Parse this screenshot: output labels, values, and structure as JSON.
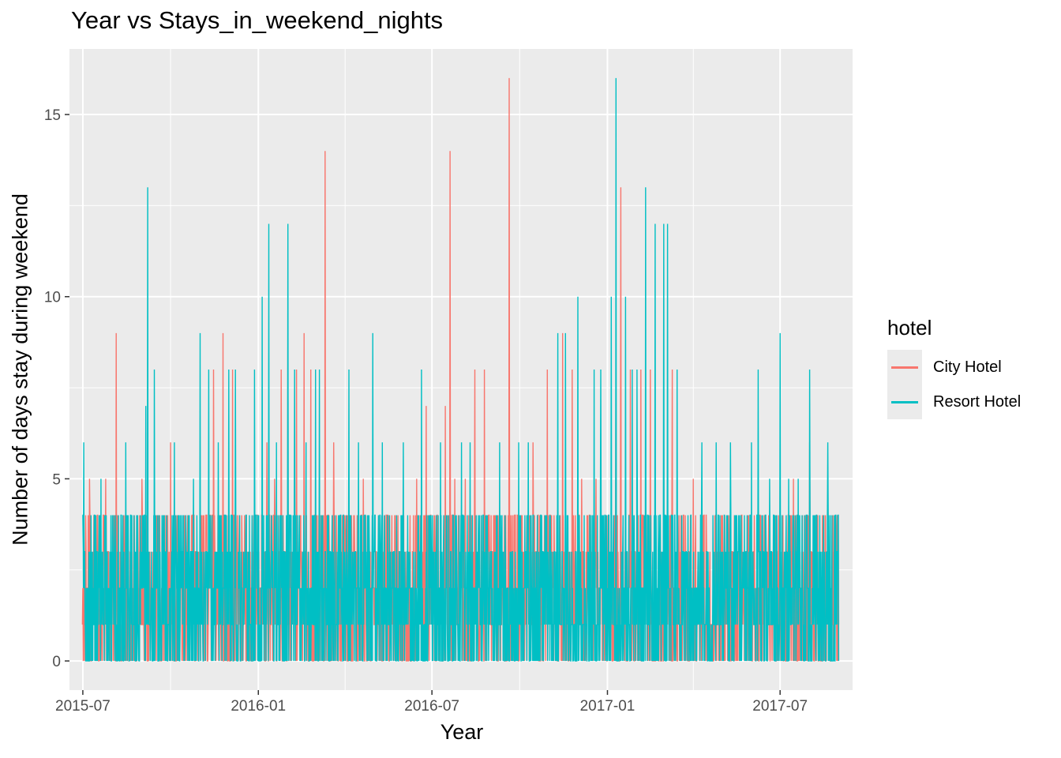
{
  "chart_data": {
    "type": "line",
    "title": "Year vs Stays_in_weekend_nights",
    "xlabel": "Year",
    "ylabel": "Number of days stay during weekend",
    "x_type": "date",
    "xlim": [
      "2015-06-17",
      "2017-09-15"
    ],
    "ylim": [
      -0.8,
      16.8
    ],
    "x_ticks": [
      "2015-07",
      "2016-01",
      "2016-07",
      "2017-01",
      "2017-07"
    ],
    "x_tick_dates": [
      "2015-07-01",
      "2016-01-01",
      "2016-07-01",
      "2017-01-01",
      "2017-07-01"
    ],
    "y_ticks": [
      0,
      5,
      10,
      15
    ],
    "grid": true,
    "panel_background": "#ebebeb",
    "legend": {
      "title": "hotel",
      "position": "right"
    },
    "series": [
      {
        "name": "City Hotel",
        "color": "#F8766D",
        "baseline_max": 4,
        "values": [
          [
            "2015-07-08",
            5
          ],
          [
            "2015-07-25",
            5
          ],
          [
            "2015-08-05",
            9
          ],
          [
            "2015-09-01",
            5
          ],
          [
            "2015-10-01",
            6
          ],
          [
            "2015-11-15",
            8
          ],
          [
            "2015-11-25",
            9
          ],
          [
            "2015-12-05",
            8
          ],
          [
            "2016-01-10",
            6
          ],
          [
            "2016-01-18",
            5
          ],
          [
            "2016-01-25",
            8
          ],
          [
            "2016-02-01",
            9
          ],
          [
            "2016-02-10",
            8
          ],
          [
            "2016-02-18",
            9
          ],
          [
            "2016-02-25",
            8
          ],
          [
            "2016-03-11",
            14
          ],
          [
            "2016-03-20",
            6
          ],
          [
            "2016-04-20",
            5
          ],
          [
            "2016-06-15",
            5
          ],
          [
            "2016-06-25",
            7
          ],
          [
            "2016-07-15",
            7
          ],
          [
            "2016-07-20",
            14
          ],
          [
            "2016-07-25",
            5
          ],
          [
            "2016-08-05",
            5
          ],
          [
            "2016-08-15",
            8
          ],
          [
            "2016-08-25",
            8
          ],
          [
            "2016-09-20",
            16
          ],
          [
            "2016-10-15",
            6
          ],
          [
            "2016-10-30",
            8
          ],
          [
            "2016-11-15",
            9
          ],
          [
            "2016-11-25",
            8
          ],
          [
            "2016-12-05",
            5
          ],
          [
            "2016-12-20",
            5
          ],
          [
            "2017-01-10",
            8
          ],
          [
            "2017-01-15",
            13
          ],
          [
            "2017-01-25",
            8
          ],
          [
            "2017-02-05",
            8
          ],
          [
            "2017-02-15",
            8
          ],
          [
            "2017-03-01",
            6
          ],
          [
            "2017-03-10",
            8
          ],
          [
            "2017-04-01",
            5
          ],
          [
            "2017-07-01",
            5
          ],
          [
            "2017-07-15",
            5
          ],
          [
            "2017-08-01",
            6
          ]
        ]
      },
      {
        "name": "Resort Hotel",
        "color": "#00BFC4",
        "baseline_max": 4,
        "values": [
          [
            "2015-07-02",
            6
          ],
          [
            "2015-07-20",
            5
          ],
          [
            "2015-08-10",
            4
          ],
          [
            "2015-08-15",
            6
          ],
          [
            "2015-09-05",
            7
          ],
          [
            "2015-09-07",
            13
          ],
          [
            "2015-09-14",
            8
          ],
          [
            "2015-10-05",
            6
          ],
          [
            "2015-10-25",
            5
          ],
          [
            "2015-11-01",
            9
          ],
          [
            "2015-11-10",
            8
          ],
          [
            "2015-11-20",
            6
          ],
          [
            "2015-12-01",
            8
          ],
          [
            "2015-12-08",
            8
          ],
          [
            "2015-12-28",
            8
          ],
          [
            "2016-01-05",
            10
          ],
          [
            "2016-01-12",
            12
          ],
          [
            "2016-01-20",
            6
          ],
          [
            "2016-02-01",
            12
          ],
          [
            "2016-02-08",
            8
          ],
          [
            "2016-02-20",
            6
          ],
          [
            "2016-03-01",
            8
          ],
          [
            "2016-03-05",
            8
          ],
          [
            "2016-03-25",
            4
          ],
          [
            "2016-04-05",
            8
          ],
          [
            "2016-04-15",
            6
          ],
          [
            "2016-04-30",
            9
          ],
          [
            "2016-05-10",
            6
          ],
          [
            "2016-06-01",
            6
          ],
          [
            "2016-06-20",
            8
          ],
          [
            "2016-07-10",
            6
          ],
          [
            "2016-08-01",
            6
          ],
          [
            "2016-08-10",
            6
          ],
          [
            "2016-09-10",
            6
          ],
          [
            "2016-09-30",
            6
          ],
          [
            "2016-10-10",
            6
          ],
          [
            "2016-11-10",
            9
          ],
          [
            "2016-11-18",
            9
          ],
          [
            "2016-12-01",
            10
          ],
          [
            "2016-12-18",
            8
          ],
          [
            "2016-12-25",
            8
          ],
          [
            "2017-01-05",
            10
          ],
          [
            "2017-01-10",
            16
          ],
          [
            "2017-01-20",
            10
          ],
          [
            "2017-01-27",
            8
          ],
          [
            "2017-02-01",
            8
          ],
          [
            "2017-02-10",
            13
          ],
          [
            "2017-02-20",
            12
          ],
          [
            "2017-03-01",
            12
          ],
          [
            "2017-03-05",
            12
          ],
          [
            "2017-03-15",
            8
          ],
          [
            "2017-04-10",
            6
          ],
          [
            "2017-04-25",
            6
          ],
          [
            "2017-05-10",
            6
          ],
          [
            "2017-06-01",
            6
          ],
          [
            "2017-06-08",
            8
          ],
          [
            "2017-06-20",
            5
          ],
          [
            "2017-07-01",
            9
          ],
          [
            "2017-07-10",
            5
          ],
          [
            "2017-07-20",
            5
          ],
          [
            "2017-08-01",
            8
          ],
          [
            "2017-08-20",
            6
          ]
        ]
      }
    ]
  }
}
